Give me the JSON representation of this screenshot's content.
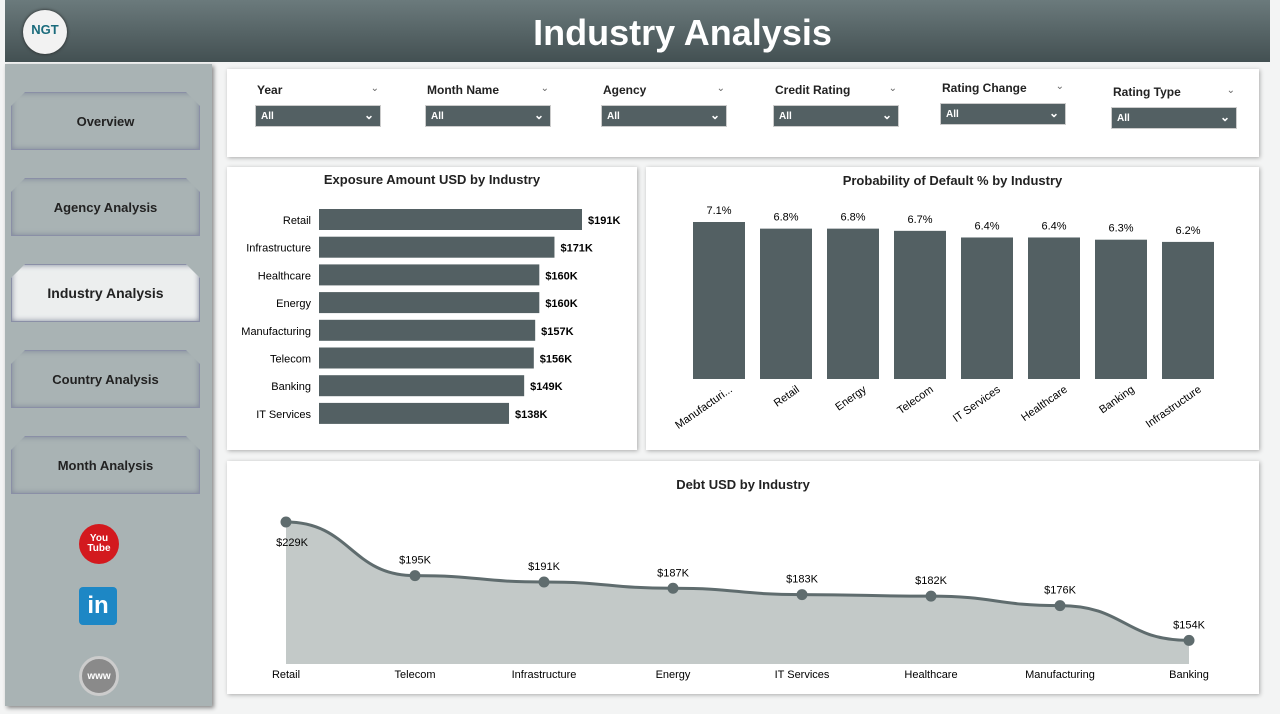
{
  "header": {
    "title": "Industry Analysis",
    "logo_text": "NGT"
  },
  "sidebar": {
    "items": [
      {
        "label": "Overview"
      },
      {
        "label": "Agency Analysis"
      },
      {
        "label": "Industry Analysis",
        "active": true
      },
      {
        "label": "Country Analysis"
      },
      {
        "label": "Month Analysis"
      }
    ],
    "social": [
      {
        "name": "youtube-icon",
        "text": "You Tube",
        "color": "#d3191e"
      },
      {
        "name": "linkedin-icon",
        "text": "in",
        "color": "#1d87c5"
      },
      {
        "name": "globe-icon",
        "text": "www",
        "color": "#8a8a8a"
      }
    ]
  },
  "filters": [
    {
      "label": "Year",
      "value": "All"
    },
    {
      "label": "Month Name",
      "value": "All"
    },
    {
      "label": "Agency",
      "value": "All"
    },
    {
      "label": "Credit Rating",
      "value": "All"
    },
    {
      "label": "Rating Change",
      "value": "All"
    },
    {
      "label": "Rating Type",
      "value": "All"
    }
  ],
  "colors": {
    "bar": "#536063",
    "area": "#c3c9c8",
    "line": "#5f6c6e"
  },
  "chart_data": [
    {
      "type": "bar",
      "orientation": "horizontal",
      "title": "Exposure Amount USD by Industry",
      "categories": [
        "Retail",
        "Infrastructure",
        "Healthcare",
        "Energy",
        "Manufacturing",
        "Telecom",
        "Banking",
        "IT Services"
      ],
      "values": [
        191,
        171,
        160,
        160,
        157,
        156,
        149,
        138
      ],
      "labels": [
        "$191K",
        "$171K",
        "$160K",
        "$160K",
        "$157K",
        "$156K",
        "$149K",
        "$138K"
      ],
      "unit": "K USD",
      "xlim": [
        0,
        191
      ]
    },
    {
      "type": "bar",
      "title": "Probability of Default % by Industry",
      "categories": [
        "Manufacturi...",
        "Retail",
        "Energy",
        "Telecom",
        "IT Services",
        "Healthcare",
        "Banking",
        "Infrastructure"
      ],
      "values": [
        7.1,
        6.8,
        6.8,
        6.7,
        6.4,
        6.4,
        6.3,
        6.2
      ],
      "labels": [
        "7.1%",
        "6.8%",
        "6.8%",
        "6.7%",
        "6.4%",
        "6.4%",
        "6.3%",
        "6.2%"
      ],
      "ylim": [
        0,
        7.1
      ]
    },
    {
      "type": "area",
      "title": "Debt USD by Industry",
      "categories": [
        "Retail",
        "Telecom",
        "Infrastructure",
        "Energy",
        "IT Services",
        "Healthcare",
        "Manufacturing",
        "Banking"
      ],
      "values": [
        229,
        195,
        191,
        187,
        183,
        182,
        176,
        154
      ],
      "labels": [
        "$229K",
        "$195K",
        "$191K",
        "$187K",
        "$183K",
        "$182K",
        "$176K",
        "$154K"
      ],
      "ylim": [
        139,
        229
      ]
    }
  ]
}
